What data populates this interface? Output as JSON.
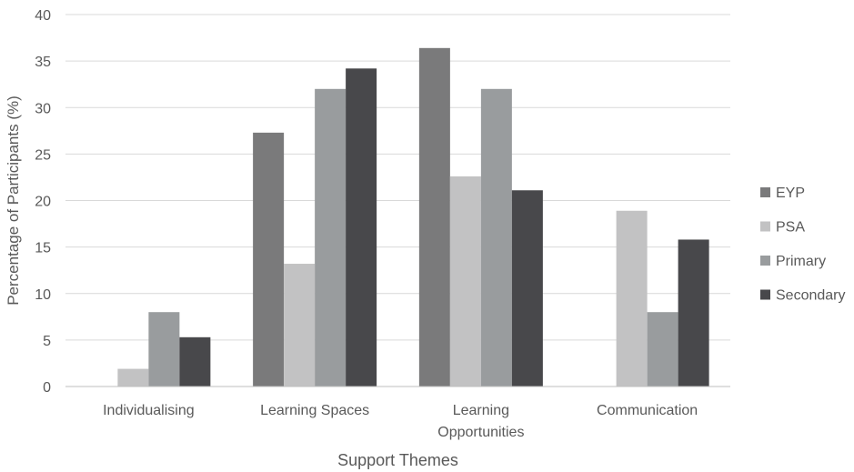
{
  "chart_data": {
    "type": "bar",
    "title": "",
    "xlabel": "Support Themes",
    "ylabel": "Percentage of Participants (%)",
    "ylim": [
      0,
      40
    ],
    "yticks": [
      0,
      5,
      10,
      15,
      20,
      25,
      30,
      35,
      40
    ],
    "grid": true,
    "legend_position": "right",
    "categories": [
      [
        "Individualising"
      ],
      [
        "Learning Spaces"
      ],
      [
        "Learning",
        "Opportunities"
      ],
      [
        "Communication"
      ]
    ],
    "series": [
      {
        "name": "EYP",
        "color": "#7a7a7b",
        "values": [
          0,
          27.3,
          36.4,
          0
        ]
      },
      {
        "name": "PSA",
        "color": "#c2c2c3",
        "values": [
          1.9,
          13.2,
          22.6,
          18.9
        ]
      },
      {
        "name": "Primary",
        "color": "#999c9e",
        "values": [
          8,
          32,
          32,
          8
        ]
      },
      {
        "name": "Secondary",
        "color": "#48484b",
        "values": [
          5.3,
          34.2,
          21.1,
          15.8
        ]
      }
    ]
  }
}
